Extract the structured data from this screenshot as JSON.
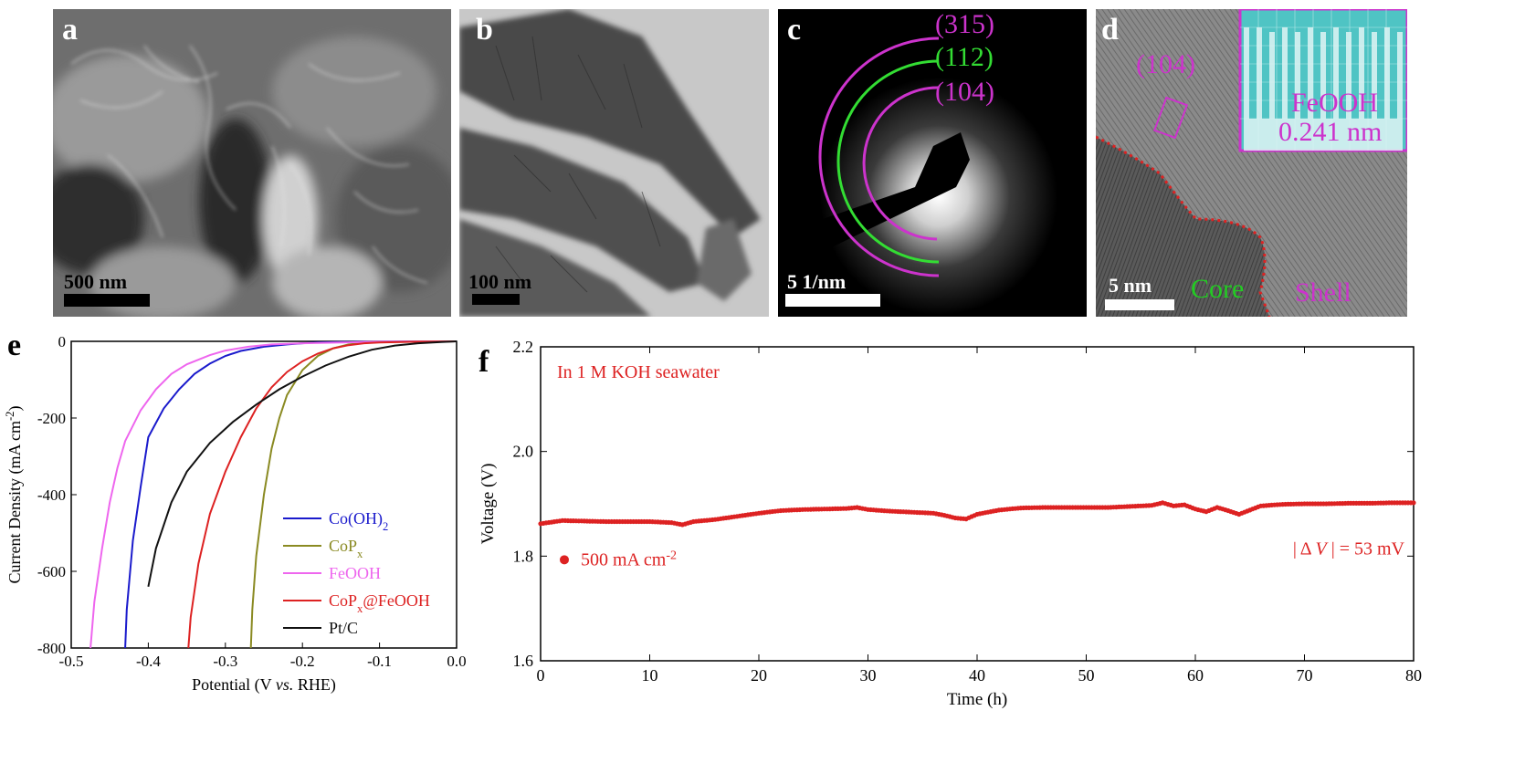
{
  "panels": {
    "a": {
      "label": "a",
      "scale": "500 nm"
    },
    "b": {
      "label": "b",
      "scale": "100 nm"
    },
    "c": {
      "label": "c",
      "scale": "5 1/nm",
      "rings": [
        "(315)",
        "(112)",
        "(104)"
      ]
    },
    "d": {
      "label": "d",
      "scale": "5 nm",
      "plane": "(104)",
      "inset_name": "FeOOH",
      "inset_spacing": "0.241 nm",
      "core": "Core",
      "shell": "Shell"
    },
    "e": {
      "label": "e"
    },
    "f": {
      "label": "f"
    }
  },
  "chart_data": [
    {
      "type": "line",
      "panel": "e",
      "xlabel": "Potential (V vs. RHE)",
      "ylabel": "Current Density (mA cm-2)",
      "xlim": [
        -0.5,
        0.0
      ],
      "ylim": [
        -800,
        0
      ],
      "xticks": [
        "-0.5",
        "-0.4",
        "-0.3",
        "-0.2",
        "-0.1",
        "0.0"
      ],
      "yticks": [
        "0",
        "-200",
        "-400",
        "-600",
        "-800"
      ],
      "series": [
        {
          "name": "Co(OH)2",
          "color": "#1a1acc",
          "x": [
            -0.43,
            -0.428,
            -0.42,
            -0.41,
            -0.4,
            -0.38,
            -0.36,
            -0.34,
            -0.32,
            -0.3,
            -0.28,
            -0.25,
            -0.22,
            -0.2,
            -0.18,
            -0.15,
            -0.1,
            0.0
          ],
          "y": [
            -800,
            -700,
            -520,
            -380,
            -250,
            -175,
            -125,
            -85,
            -58,
            -38,
            -25,
            -14,
            -8,
            -5,
            -3,
            -2,
            -1,
            0
          ]
        },
        {
          "name": "CoPx",
          "color": "#8a8a22",
          "x": [
            -0.267,
            -0.265,
            -0.26,
            -0.25,
            -0.24,
            -0.23,
            -0.22,
            -0.2,
            -0.18,
            -0.16,
            -0.14,
            -0.12,
            -0.1,
            -0.05,
            0.0
          ],
          "y": [
            -800,
            -700,
            -560,
            -400,
            -280,
            -200,
            -140,
            -75,
            -38,
            -18,
            -8,
            -4,
            -2,
            -1,
            0
          ]
        },
        {
          "name": "FeOOH",
          "color": "#ee66ee",
          "x": [
            -0.475,
            -0.47,
            -0.46,
            -0.45,
            -0.44,
            -0.43,
            -0.41,
            -0.39,
            -0.37,
            -0.35,
            -0.32,
            -0.3,
            -0.27,
            -0.24,
            -0.2,
            -0.15,
            -0.1,
            0.0
          ],
          "y": [
            -800,
            -680,
            -540,
            -420,
            -330,
            -260,
            -180,
            -125,
            -85,
            -60,
            -36,
            -24,
            -14,
            -8,
            -5,
            -3,
            -1,
            0
          ]
        },
        {
          "name": "CoPx@FeOOH",
          "color": "#dd2222",
          "x": [
            -0.348,
            -0.345,
            -0.335,
            -0.32,
            -0.3,
            -0.28,
            -0.26,
            -0.24,
            -0.22,
            -0.2,
            -0.18,
            -0.16,
            -0.14,
            -0.12,
            -0.1,
            -0.05,
            0.0
          ],
          "y": [
            -800,
            -720,
            -580,
            -450,
            -340,
            -250,
            -175,
            -120,
            -80,
            -52,
            -32,
            -18,
            -10,
            -5,
            -3,
            -1,
            0
          ]
        },
        {
          "name": "Pt/C",
          "color": "#111111",
          "x": [
            -0.4,
            -0.39,
            -0.37,
            -0.35,
            -0.32,
            -0.29,
            -0.26,
            -0.23,
            -0.2,
            -0.17,
            -0.14,
            -0.11,
            -0.08,
            -0.05,
            -0.02,
            0.0
          ],
          "y": [
            -640,
            -540,
            -420,
            -340,
            -265,
            -210,
            -165,
            -125,
            -92,
            -63,
            -40,
            -22,
            -11,
            -5,
            -2,
            0
          ]
        }
      ],
      "legend": [
        "Co(OH)2",
        "CoPx",
        "FeOOH",
        "CoPx@FeOOH",
        "Pt/C"
      ],
      "legend_position": "bottom-right"
    },
    {
      "type": "line",
      "panel": "f",
      "title": "In 1 M KOH seawater",
      "xlabel": "Time (h)",
      "ylabel": "Voltage (V)",
      "xlim": [
        0,
        80
      ],
      "ylim": [
        1.6,
        2.2
      ],
      "xticks": [
        "0",
        "10",
        "20",
        "30",
        "40",
        "50",
        "60",
        "70",
        "80"
      ],
      "yticks": [
        "1.6",
        "1.8",
        "2.0",
        "2.2"
      ],
      "legend": "500 mA cm-2",
      "annotation": "| Δ V | = 53 mV",
      "series": [
        {
          "name": "500 mA cm-2",
          "color": "#dd2222",
          "x": [
            0,
            2,
            4,
            6,
            8,
            10,
            12,
            13,
            14,
            16,
            18,
            20,
            22,
            24,
            26,
            28,
            29,
            30,
            32,
            34,
            36,
            37,
            38,
            39,
            40,
            42,
            44,
            46,
            48,
            50,
            52,
            54,
            56,
            57,
            58,
            59,
            60,
            61,
            62,
            63,
            64,
            65,
            66,
            68,
            70,
            72,
            74,
            76,
            78,
            80
          ],
          "y": [
            1.862,
            1.868,
            1.867,
            1.866,
            1.866,
            1.866,
            1.864,
            1.86,
            1.866,
            1.87,
            1.876,
            1.882,
            1.887,
            1.889,
            1.89,
            1.891,
            1.893,
            1.889,
            1.886,
            1.884,
            1.882,
            1.878,
            1.873,
            1.871,
            1.88,
            1.888,
            1.892,
            1.893,
            1.893,
            1.893,
            1.893,
            1.895,
            1.897,
            1.902,
            1.896,
            1.898,
            1.89,
            1.885,
            1.893,
            1.887,
            1.88,
            1.888,
            1.896,
            1.899,
            1.9,
            1.9,
            1.901,
            1.901,
            1.902,
            1.902
          ]
        }
      ]
    }
  ]
}
